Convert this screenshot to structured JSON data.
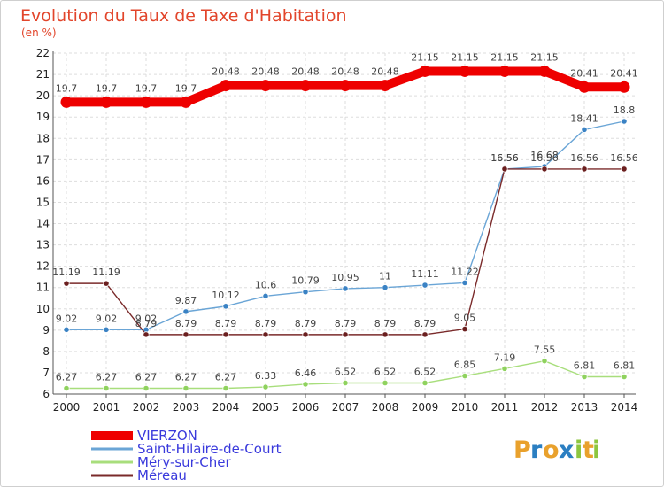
{
  "chart_data": {
    "type": "line",
    "title": "Evolution du Taux de Taxe d'Habitation",
    "subtitle": "(en %)",
    "x": [
      "2000",
      "2001",
      "2002",
      "2003",
      "2004",
      "2005",
      "2006",
      "2007",
      "2008",
      "2009",
      "2010",
      "2011",
      "2012",
      "2013",
      "2014"
    ],
    "ylim": [
      6,
      22
    ],
    "yticks": [
      "6",
      "7",
      "8",
      "9",
      "10",
      "11",
      "12",
      "13",
      "14",
      "15",
      "16",
      "17",
      "18",
      "19",
      "20",
      "21",
      "22"
    ],
    "grid": true,
    "legend_position": "bottom-left",
    "series": [
      {
        "name": "VIERZON",
        "color": "#ee0000",
        "width": 10,
        "values": [
          19.7,
          19.7,
          19.7,
          19.7,
          20.48,
          20.48,
          20.48,
          20.48,
          20.48,
          21.15,
          21.15,
          21.15,
          21.15,
          20.41,
          20.41
        ],
        "labels": [
          "19.7",
          "19.7",
          "19.7",
          "19.7",
          "20.48",
          "20.48",
          "20.48",
          "20.48",
          "20.48",
          "21.15",
          "21.15",
          "21.15",
          "21.15",
          "20.41",
          "20.41"
        ]
      },
      {
        "name": "Saint-Hilaire-de-Court",
        "color": "#6aa5d6",
        "marker": "#3a82c4",
        "width": 1.4,
        "values": [
          9.02,
          9.02,
          9.02,
          9.87,
          10.12,
          10.6,
          10.79,
          10.95,
          11,
          11.11,
          11.22,
          16.56,
          16.68,
          18.41,
          18.8
        ],
        "labels": [
          "9.02",
          "9.02",
          "9.02",
          "9.87",
          "10.12",
          "10.6",
          "10.79",
          "10.95",
          "11",
          "11.11",
          "11.22",
          "16.56",
          "16.68",
          "18.41",
          "18.8"
        ]
      },
      {
        "name": "Méry-sur-Cher",
        "color": "#a8de7c",
        "marker": "#8fd25e",
        "width": 1.4,
        "values": [
          6.27,
          6.27,
          6.27,
          6.27,
          6.27,
          6.33,
          6.46,
          6.52,
          6.52,
          6.52,
          6.85,
          7.19,
          7.55,
          6.81,
          6.81
        ],
        "labels": [
          "6.27",
          "6.27",
          "6.27",
          "6.27",
          "6.27",
          "6.33",
          "6.46",
          "6.52",
          "6.52",
          "6.52",
          "6.85",
          "7.19",
          "7.55",
          "6.81",
          "6.81"
        ]
      },
      {
        "name": "Méreau",
        "color": "#7a2a2a",
        "marker": "#6b1f1f",
        "width": 1.4,
        "values": [
          11.19,
          11.19,
          8.79,
          8.79,
          8.79,
          8.79,
          8.79,
          8.79,
          8.79,
          8.79,
          9.05,
          16.56,
          16.56,
          16.56,
          16.56
        ],
        "labels": [
          "11.19",
          "11.19",
          "8.79",
          "8.79",
          "8.79",
          "8.79",
          "8.79",
          "8.79",
          "8.79",
          "8.79",
          "9.05",
          "16.56",
          "16.56",
          "16.56",
          "16.56"
        ]
      }
    ]
  },
  "brand": {
    "letters": [
      "P",
      "r",
      "o",
      "x",
      "i",
      "t",
      "i"
    ],
    "colors": [
      "#e9a12c",
      "#2b7fc2",
      "#e9a12c",
      "#2b7fc2",
      "#8cc63f",
      "#e9a12c",
      "#8cc63f"
    ]
  }
}
